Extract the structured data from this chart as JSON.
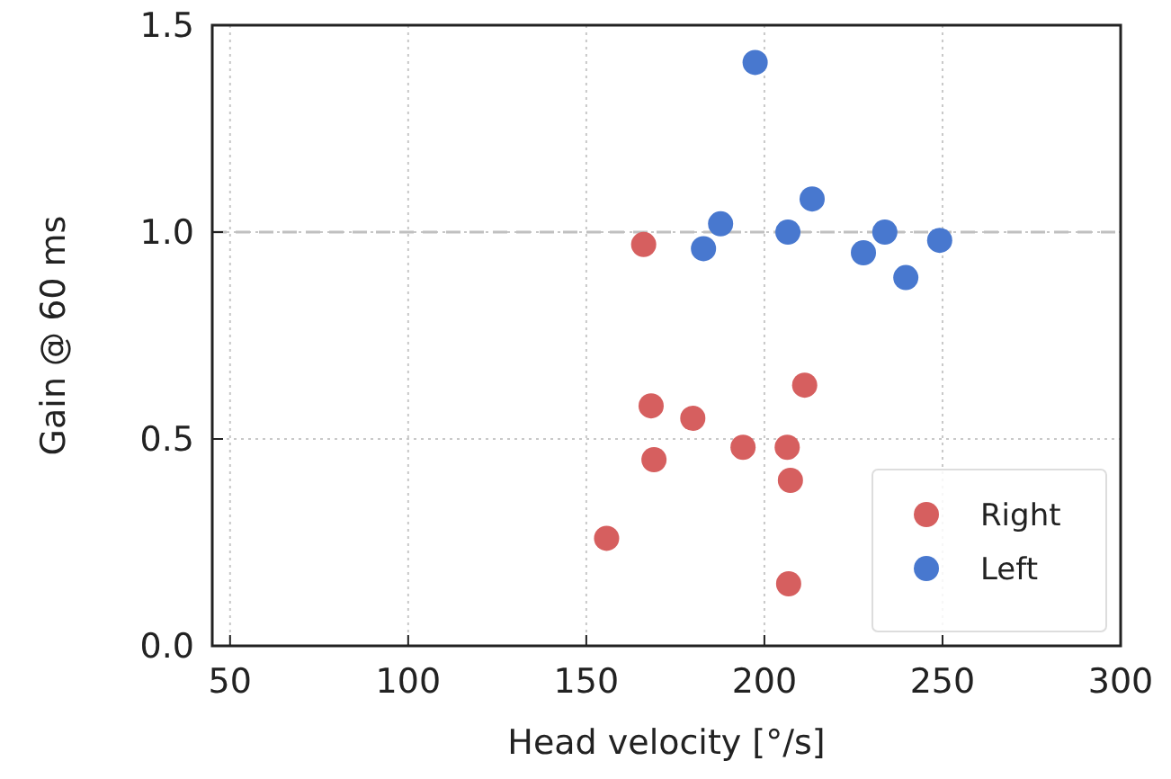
{
  "chart_data": {
    "type": "scatter",
    "xlabel": "Head velocity [°/s]",
    "ylabel": "Gain @ 60 ms",
    "xlim": [
      45,
      300
    ],
    "xticks": [
      50,
      100,
      150,
      200,
      250,
      300
    ],
    "ylim": [
      0,
      1.5
    ],
    "yticks": [
      {
        "value": 0,
        "label": "0.0"
      },
      0.5,
      {
        "value": 1,
        "label": "1.0"
      },
      1.5
    ],
    "grid": true,
    "legend": "bottom right",
    "marker": "circle",
    "ref_lines": [
      {
        "axis": "y",
        "value": 1.0,
        "color": "#c0c0c0",
        "line_style": "dashed"
      }
    ],
    "series": [
      {
        "name": "Right",
        "color": "#d65f5f",
        "x": [
          166.1,
          168.2,
          169.0,
          179.9,
          194.0,
          206.4,
          207.3,
          211.3,
          155.7,
          206.8
        ],
        "values": [
          0.97,
          0.58,
          0.45,
          0.55,
          0.48,
          0.48,
          0.4,
          0.63,
          0.26,
          0.15
        ]
      },
      {
        "name": "Left",
        "color": "#4878cf",
        "x": [
          197.4,
          182.9,
          187.7,
          206.6,
          213.4,
          227.8,
          233.8,
          239.7,
          249.2
        ],
        "values": [
          1.41,
          0.96,
          1.02,
          1.0,
          1.08,
          0.95,
          1.0,
          0.89,
          0.98
        ]
      }
    ]
  }
}
